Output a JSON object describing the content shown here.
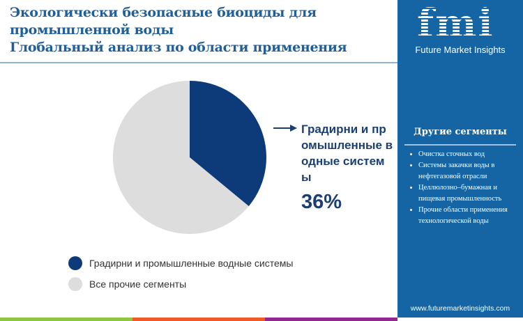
{
  "title": {
    "line1": "Экологически безопасные биоциды для",
    "line2": "промышленной воды",
    "line3": "Глобальный анализ по области применения"
  },
  "chart_data": {
    "type": "pie",
    "categories": [
      "Градирни и промышленные водные системы",
      "Все прочие сегменты"
    ],
    "values": [
      36,
      64
    ],
    "colors": [
      "#0d3b7a",
      "#dddddd"
    ],
    "callout": {
      "label": "Градирни и промышленные водные системы",
      "value": "36%"
    },
    "legend": [
      "Градирни и промышленные водные системы",
      "Все прочие сегменты"
    ],
    "legend_placement": "bottom-left"
  },
  "sidebar": {
    "logo": "fmi",
    "logo_sub": "Future Market Insights",
    "segments_title": "Другие сегменты",
    "segments": [
      "Очистка сточных вод",
      "Системы закачки воды в нефтегазовой отрасли",
      "Целлюлозно–бумажная и пищевая промышленность",
      "Прочие области применения технологической воды"
    ],
    "url": "www.futuremarketinsights.com"
  },
  "stripes": [
    "#8dc63f",
    "#f05a28",
    "#92278f"
  ]
}
